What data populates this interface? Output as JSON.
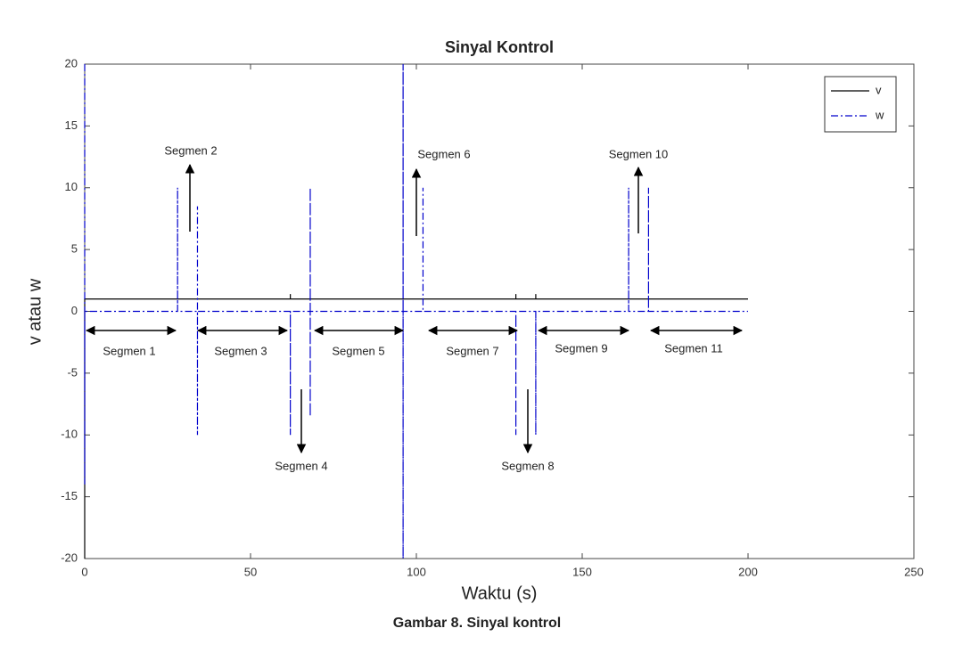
{
  "chart_data": {
    "type": "line",
    "title": "Sinyal Kontrol",
    "x_label": "Waktu (s)",
    "y_label": "v atau w",
    "caption": "Gambar 8. Sinyal kontrol",
    "xlim": [
      0,
      250
    ],
    "xticks": [
      0,
      50,
      100,
      150,
      200,
      250
    ],
    "ylim": [
      -20,
      20
    ],
    "yticks": [
      -20,
      -15,
      -10,
      -5,
      0,
      5,
      10,
      15,
      20
    ],
    "legend": "upper right",
    "grid": false,
    "series": [
      {
        "name": "v",
        "color": "#000000",
        "style": "solid",
        "x": [
          0,
          0,
          62,
          62,
          62,
          130,
          130,
          130,
          136,
          136,
          136,
          200
        ],
        "values": [
          -20,
          1,
          1,
          1.4,
          1,
          1,
          1.4,
          1,
          1,
          1.4,
          1,
          1
        ]
      },
      {
        "name": "w",
        "color": "#0000cc",
        "style": "dashdot",
        "x": [
          0,
          0,
          0,
          28,
          28,
          28,
          34,
          34,
          34,
          34,
          62,
          62,
          62,
          68,
          68,
          68,
          68,
          96,
          96,
          96,
          96,
          102,
          102,
          102,
          130,
          130,
          130,
          136,
          136,
          136,
          164,
          164,
          164,
          170,
          170,
          170,
          200
        ],
        "values": [
          20,
          -14,
          0,
          0,
          10,
          0,
          0,
          8.5,
          -10,
          0,
          0,
          -10,
          0,
          0,
          10,
          -8.5,
          0,
          0,
          20,
          -20,
          0,
          0,
          10,
          0,
          0,
          -10,
          0,
          0,
          -10,
          0,
          0,
          10,
          0,
          0,
          10,
          0,
          0
        ]
      }
    ],
    "annotations": [
      "Segmen 1",
      "Segmen 2",
      "Segmen 3",
      "Segmen 4",
      "Segmen 5",
      "Segmen 6",
      "Segmen 7",
      "Segmen 8",
      "Segmen 9",
      "Segmen 10",
      "Segmen 11"
    ]
  }
}
